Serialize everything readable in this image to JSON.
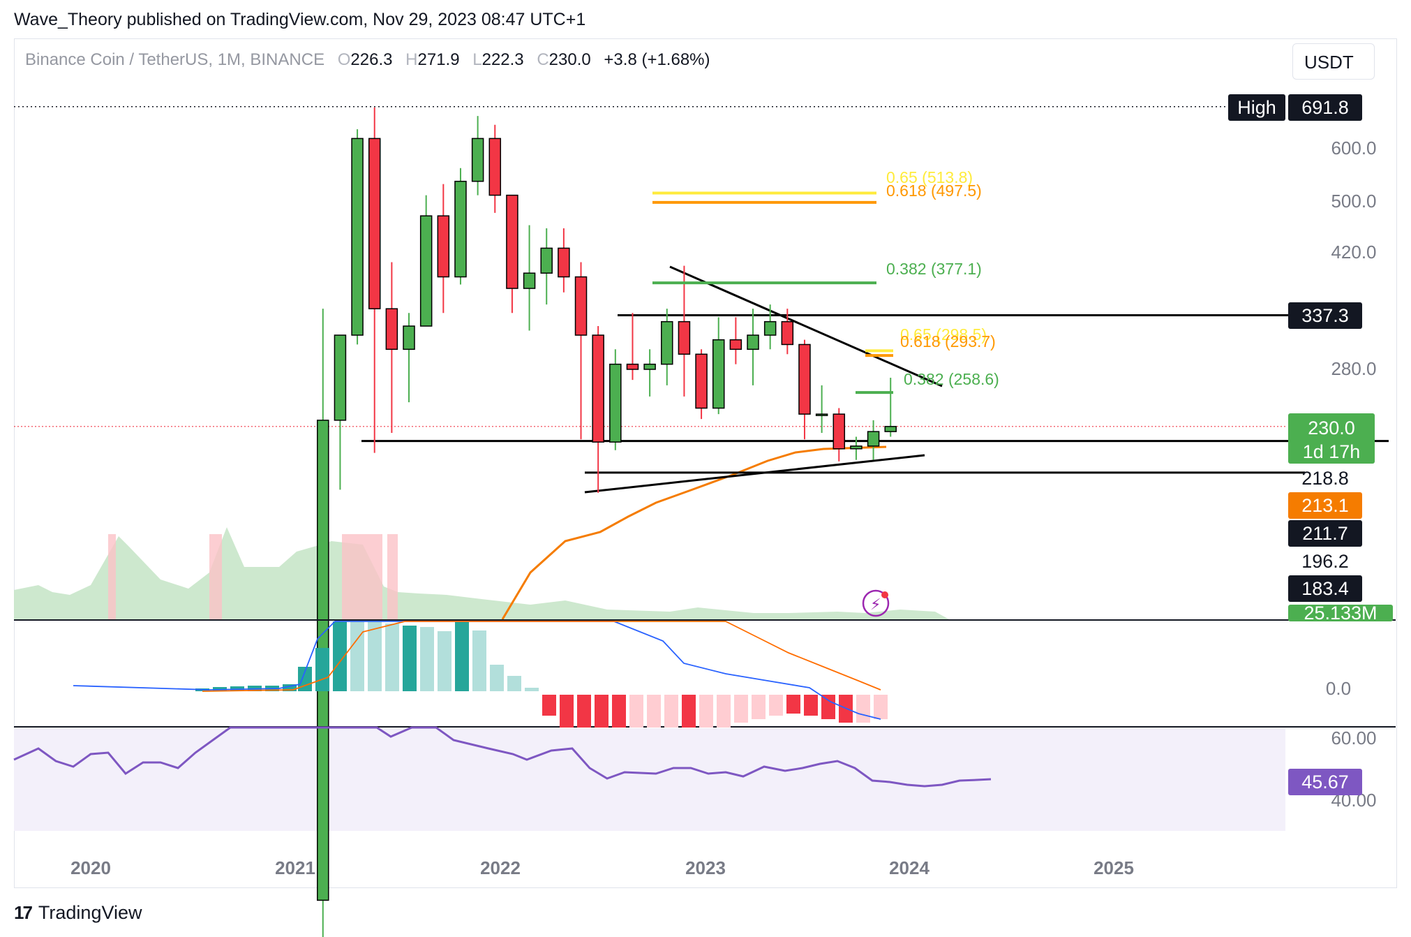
{
  "publisher": "Wave_Theory published on TradingView.com, Nov 29, 2023 08:47 UTC+1",
  "symbol": "Binance Coin / TetherUS, 1M, BINANCE",
  "ohlc": {
    "o_label": "O",
    "o": "226.3",
    "h_label": "H",
    "h": "271.9",
    "l_label": "L",
    "l": "222.3",
    "c_label": "C",
    "c": "230.0",
    "change": "+3.8 (+1.68%)"
  },
  "currency": "USDT",
  "footer_brand": "TradingView",
  "colors": {
    "up": "#4caf50",
    "down": "#f23645",
    "volume_up": "#c8e6c9",
    "volume_down": "#fbc2c7",
    "fib_yellow": "#ffeb3b",
    "fib_orange": "#ff9800",
    "fib_green": "#4caf50",
    "ma": "#f57c00",
    "rsi": "#7e57c2",
    "macd": "#2962ff",
    "signal": "#ff6d00"
  },
  "chart_data": {
    "type": "candlestick",
    "interval": "1M",
    "x_ticks": [
      "2020",
      "2021",
      "2022",
      "2023",
      "2024",
      "2025"
    ],
    "y_ticks": [
      "600.0",
      "500.0",
      "420.0",
      "280.0"
    ],
    "scale": "log",
    "candles": [
      {
        "t": "2021-02",
        "o": 45,
        "h": 345,
        "l": 38,
        "c": 235
      },
      {
        "t": "2021-03",
        "o": 235,
        "h": 315,
        "l": 185,
        "c": 315
      },
      {
        "t": "2021-04",
        "o": 315,
        "h": 640,
        "l": 305,
        "c": 620
      },
      {
        "t": "2021-05",
        "o": 620,
        "h": 690,
        "l": 210,
        "c": 345
      },
      {
        "t": "2021-06",
        "o": 345,
        "h": 405,
        "l": 225,
        "c": 300
      },
      {
        "t": "2021-07",
        "o": 300,
        "h": 340,
        "l": 250,
        "c": 325
      },
      {
        "t": "2021-08",
        "o": 325,
        "h": 510,
        "l": 325,
        "c": 475
      },
      {
        "t": "2021-09",
        "o": 475,
        "h": 530,
        "l": 340,
        "c": 385
      },
      {
        "t": "2021-10",
        "o": 385,
        "h": 560,
        "l": 375,
        "c": 535
      },
      {
        "t": "2021-11",
        "o": 535,
        "h": 670,
        "l": 510,
        "c": 620
      },
      {
        "t": "2021-12",
        "o": 620,
        "h": 650,
        "l": 480,
        "c": 510
      },
      {
        "t": "2022-01",
        "o": 510,
        "h": 510,
        "l": 340,
        "c": 370
      },
      {
        "t": "2022-02",
        "o": 370,
        "h": 460,
        "l": 320,
        "c": 390
      },
      {
        "t": "2022-03",
        "o": 390,
        "h": 455,
        "l": 350,
        "c": 425
      },
      {
        "t": "2022-04",
        "o": 425,
        "h": 455,
        "l": 365,
        "c": 385
      },
      {
        "t": "2022-05",
        "o": 385,
        "h": 405,
        "l": 220,
        "c": 315
      },
      {
        "t": "2022-06",
        "o": 315,
        "h": 325,
        "l": 183,
        "c": 218
      },
      {
        "t": "2022-07",
        "o": 218,
        "h": 300,
        "l": 212,
        "c": 285
      },
      {
        "t": "2022-08",
        "o": 285,
        "h": 340,
        "l": 270,
        "c": 280
      },
      {
        "t": "2022-09",
        "o": 280,
        "h": 300,
        "l": 255,
        "c": 285
      },
      {
        "t": "2022-10",
        "o": 285,
        "h": 345,
        "l": 265,
        "c": 330
      },
      {
        "t": "2022-11",
        "o": 330,
        "h": 400,
        "l": 255,
        "c": 295
      },
      {
        "t": "2022-12",
        "o": 295,
        "h": 300,
        "l": 236,
        "c": 245
      },
      {
        "t": "2023-01",
        "o": 245,
        "h": 335,
        "l": 240,
        "c": 310
      },
      {
        "t": "2023-02",
        "o": 310,
        "h": 335,
        "l": 285,
        "c": 300
      },
      {
        "t": "2023-03",
        "o": 300,
        "h": 345,
        "l": 265,
        "c": 315
      },
      {
        "t": "2023-04",
        "o": 315,
        "h": 350,
        "l": 300,
        "c": 330
      },
      {
        "t": "2023-05",
        "o": 330,
        "h": 345,
        "l": 295,
        "c": 305
      },
      {
        "t": "2023-06",
        "o": 305,
        "h": 310,
        "l": 220,
        "c": 240
      },
      {
        "t": "2023-07",
        "o": 240,
        "h": 265,
        "l": 225,
        "c": 240
      },
      {
        "t": "2023-08",
        "o": 240,
        "h": 245,
        "l": 204,
        "c": 213
      },
      {
        "t": "2023-09",
        "o": 213,
        "h": 222,
        "l": 205,
        "c": 215
      },
      {
        "t": "2023-10",
        "o": 215,
        "h": 235,
        "l": 205,
        "c": 226
      },
      {
        "t": "2023-11",
        "o": 226,
        "h": 272,
        "l": 222,
        "c": 230
      }
    ],
    "price_labels": [
      {
        "text": "High",
        "value": "691.8",
        "style": "black"
      },
      {
        "value": "337.3",
        "style": "black"
      },
      {
        "value": "230.0",
        "sub": "1d 17h",
        "style": "green"
      },
      {
        "value": "218.8",
        "style": "plain"
      },
      {
        "value": "213.1",
        "style": "orange"
      },
      {
        "value": "211.7",
        "style": "black"
      },
      {
        "value": "196.2",
        "style": "plain"
      },
      {
        "value": "183.4",
        "style": "black"
      },
      {
        "value": "25.133M",
        "style": "green"
      }
    ],
    "fib_levels": [
      {
        "text": "0.65 (513.8)",
        "price": 513.8,
        "color": "fib_yellow"
      },
      {
        "text": "0.618 (497.5)",
        "price": 497.5,
        "color": "fib_orange"
      },
      {
        "text": "0.382 (377.1)",
        "price": 377.1,
        "color": "fib_green"
      },
      {
        "text": "0.65 (298.5)",
        "price": 298.5,
        "color": "fib_yellow"
      },
      {
        "text": "0.618 (293.7)",
        "price": 293.7,
        "color": "fib_orange"
      },
      {
        "text": "0.382 (258.6)",
        "price": 258.6,
        "color": "fib_green"
      }
    ],
    "horizontal_lines": [
      337.3,
      218.8,
      196.2
    ],
    "macd_axis_label": "0.0",
    "rsi_ticks": [
      "60.00",
      "40.00"
    ],
    "rsi_value": "45.67"
  }
}
